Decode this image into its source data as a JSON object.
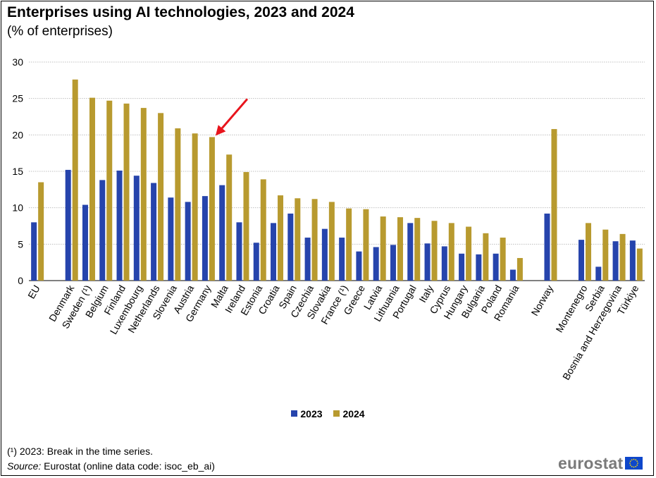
{
  "header": {
    "title": "Enterprises using AI technologies, 2023 and 2024",
    "subtitle": "(% of enterprises)"
  },
  "colors": {
    "series_2023": "#2644ac",
    "series_2024": "#b89a2f",
    "gridline": "#bfbfbf",
    "arrow": "#e8141c",
    "logo_text": "#7a7a7a",
    "eu_flag_blue": "#0e47cb",
    "eu_flag_stars": "#ffdd00"
  },
  "chart_data": {
    "type": "bar",
    "ylim": [
      0,
      30
    ],
    "yticks": [
      0,
      5,
      10,
      15,
      20,
      25,
      30
    ],
    "grid": true,
    "legend_position": "bottom-center",
    "categories": [
      "EU",
      "",
      "Denmark",
      "Sweden (¹)",
      "Belgium",
      "Finland",
      "Luxembourg",
      "Netherlands",
      "Slovenia",
      "Austria",
      "Germany",
      "Malta",
      "Ireland",
      "Estonia",
      "Croatia",
      "Spain",
      "Czechia",
      "Slovakia",
      "France (¹)",
      "Greece",
      "Latvia",
      "Lithuania",
      "Portugal",
      "Italy",
      "Cyprus",
      "Hungary",
      "Bulgaria",
      "Poland",
      "Romania",
      "",
      "Norway",
      "",
      "Montenegro",
      "Serbia",
      "Bosnia and Herzegovina",
      "Türkiye"
    ],
    "series": [
      {
        "name": "2023",
        "values": [
          8.0,
          null,
          15.2,
          10.4,
          13.8,
          15.1,
          14.4,
          13.4,
          11.4,
          10.8,
          11.6,
          13.1,
          8.0,
          5.2,
          7.9,
          9.2,
          5.9,
          7.1,
          5.9,
          4.0,
          4.6,
          4.9,
          7.9,
          5.1,
          4.7,
          3.7,
          3.6,
          3.7,
          1.5,
          null,
          9.2,
          null,
          5.6,
          1.9,
          5.4,
          5.5
        ]
      },
      {
        "name": "2024",
        "values": [
          13.5,
          null,
          27.6,
          25.1,
          24.7,
          24.3,
          23.7,
          23.0,
          20.9,
          20.2,
          19.7,
          17.3,
          14.9,
          13.9,
          11.7,
          11.3,
          11.2,
          10.8,
          9.9,
          9.8,
          8.8,
          8.7,
          8.6,
          8.2,
          7.9,
          7.4,
          6.5,
          5.9,
          3.1,
          null,
          20.8,
          null,
          7.9,
          7.0,
          6.4,
          4.4
        ]
      }
    ],
    "annotations": [
      {
        "type": "arrow",
        "target": "Germany",
        "series": "2024"
      }
    ]
  },
  "legend": {
    "items": [
      {
        "label": "2023"
      },
      {
        "label": "2024"
      }
    ]
  },
  "footer": {
    "footnote": "(¹) 2023: Break in the time series.",
    "source_label": "Source:",
    "source_text": " Eurostat (online data code: isoc_eb_ai)",
    "logo_text": "eurostat",
    "logo_icon": "eu-flag-icon"
  }
}
